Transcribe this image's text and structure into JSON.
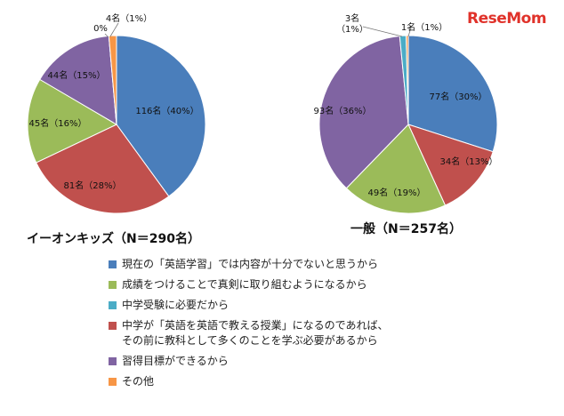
{
  "brand": {
    "logo_text": "ReseMom"
  },
  "colors": {
    "blue": "#4a7ebb",
    "green": "#9bbb59",
    "teal": "#4bacc6",
    "red": "#c0504d",
    "purple": "#8064a2",
    "orange": "#f79646"
  },
  "legend": [
    {
      "label": "現在の「英語学習」では内容が十分でないと思うから",
      "color": "#4a7ebb"
    },
    {
      "label": "成績をつけることで真剣に取り組むようになるから",
      "color": "#9bbb59"
    },
    {
      "label": "中学受験に必要だから",
      "color": "#4bacc6"
    },
    {
      "label": "中学が「英語を英語で教える授業」になるのであれば、\nその前に教科として多くのことを学ぶ必要があるから",
      "color": "#c0504d"
    },
    {
      "label": "習得目標ができるから",
      "color": "#8064a2"
    },
    {
      "label": "その他",
      "color": "#f79646"
    }
  ],
  "chart_data": [
    {
      "type": "pie",
      "title": "イーオンキッズ（N＝290名）",
      "slices": [
        {
          "name": "現在の「英語学習」では内容が十分でないと思うから",
          "value": 116,
          "percent": 40,
          "label": "116名（40%）",
          "color": "#4a7ebb"
        },
        {
          "name": "中学が「英語を英語で教える授業」になるのであれば、その前に教科として多くのことを学ぶ必要があるから",
          "value": 81,
          "percent": 28,
          "label": "81名（28%）",
          "color": "#c0504d"
        },
        {
          "name": "成績をつけることで真剣に取り組むようになるから",
          "value": 45,
          "percent": 16,
          "label": "45名（16%）",
          "color": "#9bbb59"
        },
        {
          "name": "習得目標ができるから",
          "value": 44,
          "percent": 15,
          "label": "44名（15%）",
          "color": "#8064a2"
        },
        {
          "name": "中学受験に必要だから",
          "value": 0,
          "percent": 0,
          "label": "0%",
          "color": "#4bacc6"
        },
        {
          "name": "その他",
          "value": 4,
          "percent": 1,
          "label": "4名（1%）",
          "color": "#f79646"
        }
      ]
    },
    {
      "type": "pie",
      "title": "一般（N＝257名）",
      "slices": [
        {
          "name": "現在の「英語学習」では内容が十分でないと思うから",
          "value": 77,
          "percent": 30,
          "label": "77名（30%）",
          "color": "#4a7ebb"
        },
        {
          "name": "中学が「英語を英語で教える授業」になるのであれば、その前に教科として多くのことを学ぶ必要があるから",
          "value": 34,
          "percent": 13,
          "label": "34名（13%）",
          "color": "#c0504d"
        },
        {
          "name": "成績をつけることで真剣に取り組むようになるから",
          "value": 49,
          "percent": 19,
          "label": "49名（19%）",
          "color": "#9bbb59"
        },
        {
          "name": "習得目標ができるから",
          "value": 93,
          "percent": 36,
          "label": "93名（36%）",
          "color": "#8064a2"
        },
        {
          "name": "中学受験に必要だから",
          "value": 3,
          "percent": 1,
          "label": "3名\n（1%）",
          "color": "#4bacc6"
        },
        {
          "name": "その他",
          "value": 1,
          "percent": 1,
          "label": "1名（1%）",
          "color": "#f79646"
        }
      ]
    }
  ]
}
